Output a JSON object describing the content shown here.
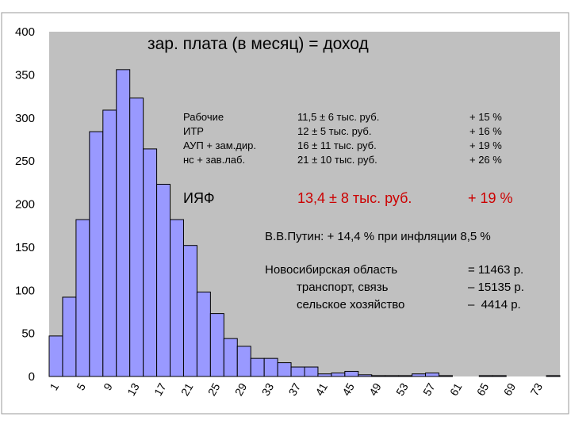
{
  "chart_data": {
    "type": "bar",
    "title": "зар. плата (в месяц) = доход",
    "x": [
      1,
      3,
      5,
      7,
      9,
      11,
      13,
      15,
      17,
      19,
      21,
      23,
      25,
      27,
      29,
      31,
      33,
      35,
      37,
      39,
      41,
      43,
      45,
      47,
      49,
      51,
      53,
      55,
      57,
      59,
      61,
      63,
      65,
      67,
      69,
      71,
      73,
      75
    ],
    "values": [
      47,
      92,
      182,
      284,
      309,
      356,
      323,
      264,
      223,
      182,
      152,
      98,
      73,
      44,
      35,
      21,
      21,
      16,
      11,
      11,
      3,
      4,
      6,
      2,
      1,
      1,
      1,
      3,
      4,
      1,
      0,
      0,
      1,
      1,
      0,
      0,
      0,
      1
    ],
    "x_tick_labels": [
      "1",
      "5",
      "9",
      "13",
      "17",
      "21",
      "25",
      "29",
      "33",
      "37",
      "41",
      "45",
      "49",
      "53",
      "57",
      "61",
      "65",
      "69",
      "73"
    ],
    "y_ticks": [
      0,
      50,
      100,
      150,
      200,
      250,
      300,
      350,
      400
    ],
    "ylim": [
      0,
      400
    ],
    "grid": false,
    "colors": {
      "bar_fill": "#9999ff",
      "bar_stroke": "#000000",
      "plot_area": "#c0c0c0"
    }
  },
  "table": {
    "rows": [
      {
        "group": "Рабочие",
        "salary": "11,5 ± 6 тыс. руб.",
        "growth": "+ 15 %"
      },
      {
        "group": "ИТР",
        "salary": "12 ± 5 тыс. руб.",
        "growth": "+ 16 %"
      },
      {
        "group": "АУП + зам.дир.",
        "salary": "16 ± 11 тыс. руб.",
        "growth": "+ 19 %"
      },
      {
        "group": "нс + зав.лаб.",
        "salary": "21 ± 10 тыс. руб.",
        "growth": "+ 26 %"
      }
    ],
    "highlight": {
      "group": "ИЯФ",
      "salary": "13,4 ± 8 тыс. руб.",
      "growth": "+ 19 %",
      "color": "#cc0000"
    }
  },
  "putin_note": "В.В.Путин: + 14,4 % при инфляции 8,5 %",
  "region": {
    "lines": [
      {
        "label": "Новосибирская область",
        "value": "= 11463 р."
      },
      {
        "label": "транспорт, связь",
        "value": "– 15135 р."
      },
      {
        "label": "сельское хозяйство",
        "value": "–  4414 р."
      }
    ]
  }
}
